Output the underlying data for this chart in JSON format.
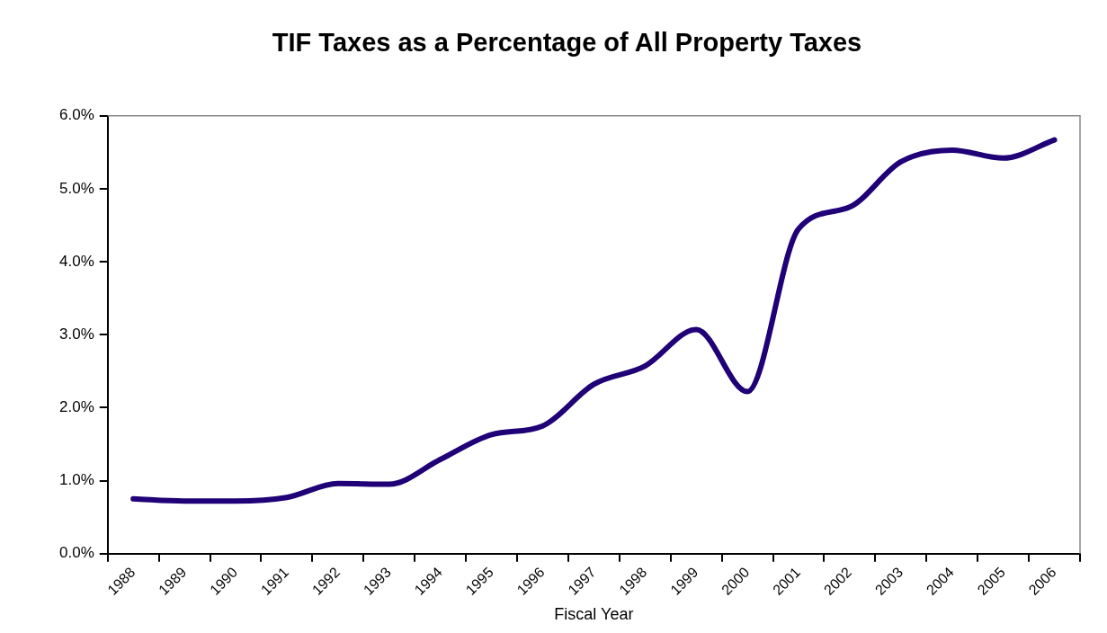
{
  "chart_data": {
    "type": "line",
    "title": "TIF Taxes as a Percentage of All Property Taxes",
    "xlabel": "Fiscal Year",
    "categories": [
      "1988",
      "1989",
      "1990",
      "1991",
      "1992",
      "1993",
      "1994",
      "1995",
      "1996",
      "1997",
      "1998",
      "1999",
      "2000",
      "2001",
      "2002",
      "2003",
      "2004",
      "2005",
      "2006"
    ],
    "series": [
      {
        "color": "#1f0077",
        "values": [
          0.75,
          0.72,
          0.72,
          0.77,
          0.96,
          0.95,
          1.29,
          1.63,
          1.75,
          2.32,
          2.57,
          3.07,
          2.22,
          4.45,
          4.75,
          5.37,
          5.53,
          5.42,
          5.67
        ]
      }
    ],
    "ylim": [
      0,
      6
    ],
    "yticks": [
      {
        "value": 0,
        "label": "0.0%"
      },
      {
        "value": 1,
        "label": "1.0%"
      },
      {
        "value": 2,
        "label": "2.0%"
      },
      {
        "value": 3,
        "label": "3.0%"
      },
      {
        "value": 4,
        "label": "4.0%"
      },
      {
        "value": 5,
        "label": "5.0%"
      },
      {
        "value": 6,
        "label": "6.0%"
      }
    ],
    "grid": false,
    "legend": false,
    "marker": "none",
    "line_style": "solid"
  }
}
